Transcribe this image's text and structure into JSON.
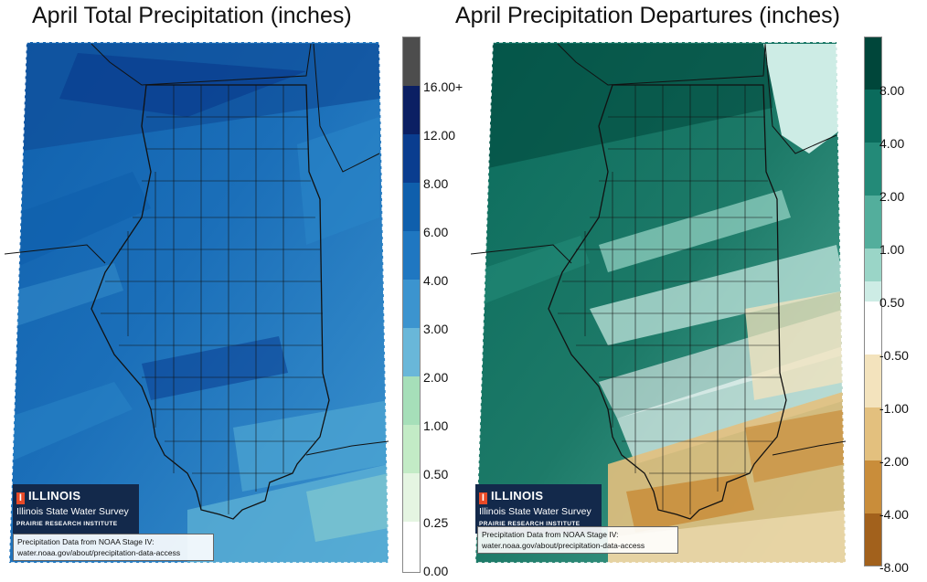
{
  "left_map": {
    "title": "April Total Precipitation (inches)",
    "legend_ticks": [
      "16.00+",
      "12.00",
      "8.00",
      "6.00",
      "4.00",
      "3.00",
      "2.00",
      "1.00",
      "0.50",
      "0.25",
      "0.00"
    ],
    "legend_colors": [
      "#4d4d4d",
      "#0b1f63",
      "#0a3d8f",
      "#0f5fac",
      "#1f77c1",
      "#3c94cf",
      "#69b7d9",
      "#a6dfb9",
      "#c3ebc6",
      "#e5f5e2",
      "#ffffff"
    ],
    "dominant_color": "#1a6fb8",
    "logo": {
      "brand": "ILLINOIS",
      "org": "Illinois State Water Survey",
      "inst": "PRAIRIE RESEARCH INSTITUTE"
    },
    "credit": [
      "Precipitation Data from NOAA Stage IV:",
      "water.noaa.gov/about/precipitation-data-access"
    ]
  },
  "right_map": {
    "title": "April Precipitation Departures (inches)",
    "legend_ticks": [
      "8.00",
      "4.00",
      "2.00",
      "1.00",
      "0.50",
      "-0.50",
      "-1.00",
      "-2.00",
      "-4.00",
      "-8.00"
    ],
    "legend_colors": [
      "#00463a",
      "#0a6b5c",
      "#238a78",
      "#53ae9c",
      "#9ad5c7",
      "#cdece5",
      "#ffffff",
      "#f3e3bd",
      "#e3c07e",
      "#c98d3a",
      "#a2611c"
    ],
    "dominant_color": "#1d7a68",
    "logo": {
      "brand": "ILLINOIS",
      "org": "Illinois State Water Survey",
      "inst": "PRAIRIE RESEARCH INSTITUTE"
    },
    "credit": [
      "Precipitation Data from NOAA Stage IV:",
      "water.noaa.gov/about/precipitation-data-access"
    ]
  },
  "colors": {
    "logo_bg": "#13294b",
    "logo_accent": "#e84a27",
    "county_lines": "#111111"
  }
}
